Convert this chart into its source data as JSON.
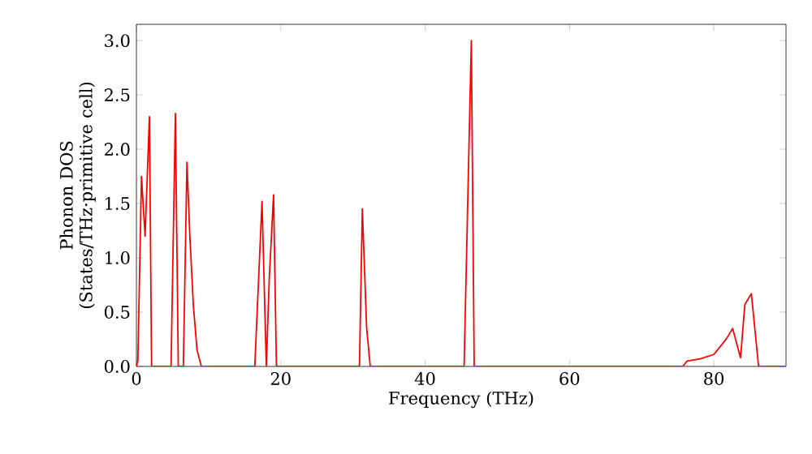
{
  "chart_data": {
    "type": "line",
    "xlabel": "Frequency (THz)",
    "ylabel": "Phonon DOS (States/THz·primitive cell)",
    "xlim": [
      0,
      90
    ],
    "ylim": [
      0,
      3.15
    ],
    "xticks": [
      0,
      20,
      40,
      60,
      80
    ],
    "yticks": [
      {
        "value": 0,
        "label": "0.0"
      },
      0.5,
      {
        "value": 1,
        "label": "1.0"
      },
      1.5,
      {
        "value": 2,
        "label": "2.0"
      },
      2.5,
      {
        "value": 3,
        "label": "3.0"
      }
    ],
    "grid": false,
    "marker": "none",
    "line_style": "solid",
    "series": [
      {
        "color": "#ff0000",
        "x": [
          0,
          0.2,
          0.7,
          1.2,
          1.8,
          2.1,
          4.8,
          5.4,
          5.8,
          6.5,
          7.0,
          7.4,
          7.9,
          8.4,
          9.0,
          16.4,
          17.4,
          18.0,
          18.4,
          19.0,
          19.4,
          30.9,
          31.3,
          31.9,
          32.4,
          45.4,
          46.4,
          46.8,
          75.7,
          76.3,
          78.1,
          80.0,
          81.1,
          81.8,
          82.6,
          83.7,
          84.3,
          85.2,
          86.2,
          90
        ],
        "values": [
          0,
          0.05,
          1.75,
          1.2,
          2.3,
          0,
          0,
          2.33,
          0,
          0,
          1.88,
          1.2,
          0.55,
          0.15,
          0,
          0,
          1.52,
          0,
          0.8,
          1.58,
          0,
          0,
          1.45,
          0.35,
          0,
          0,
          3.0,
          0,
          0,
          0.05,
          0.07,
          0.11,
          0.2,
          0.26,
          0.35,
          0.08,
          0.57,
          0.67,
          0,
          0
        ]
      }
    ]
  }
}
